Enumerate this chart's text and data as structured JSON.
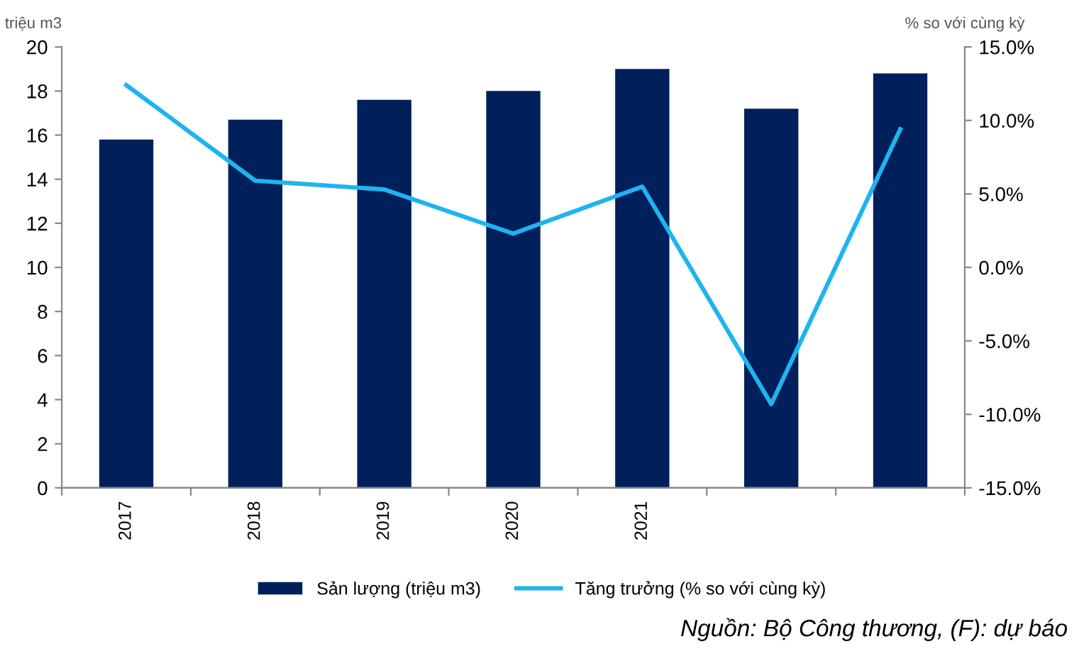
{
  "chart_data": {
    "type": "bar",
    "ylabel": "triệu m3",
    "y2label": "% so với cùng kỳ",
    "categories": [
      "2017",
      "2018",
      "2019",
      "2020",
      "2021",
      null,
      null
    ],
    "series": [
      {
        "name": "Sản lượng (triệu m3)",
        "color": "#00205b",
        "values": [
          15.8,
          16.7,
          17.6,
          18.0,
          19.0,
          17.2,
          18.8
        ]
      },
      {
        "name": "Tăng trưởng (% so với cùng kỳ)",
        "type": "line",
        "axis": "y2",
        "color": "#1eb4f0",
        "values": [
          12.4,
          5.9,
          5.3,
          2.3,
          5.5,
          -9.3,
          9.4
        ]
      }
    ],
    "ylim": [
      0,
      20
    ],
    "yticks": [
      0,
      2,
      4,
      6,
      8,
      10,
      12,
      14,
      16,
      18,
      20
    ],
    "y2lim": [
      -15,
      15
    ],
    "y2ticks": [
      {
        "value": -15,
        "label": "-15.0%"
      },
      {
        "value": -10,
        "label": "-10.0%"
      },
      {
        "value": -5,
        "label": "-5.0%"
      },
      {
        "value": 0,
        "label": "0.0%"
      },
      {
        "value": 5,
        "label": "5.0%"
      },
      {
        "value": 10,
        "label": "10.0%"
      },
      {
        "value": 15,
        "label": "15.0%"
      }
    ],
    "legend": "bottom",
    "grid": false,
    "annotations": [
      "Nguồn: Bộ Công thương, (F): dự báo"
    ]
  }
}
